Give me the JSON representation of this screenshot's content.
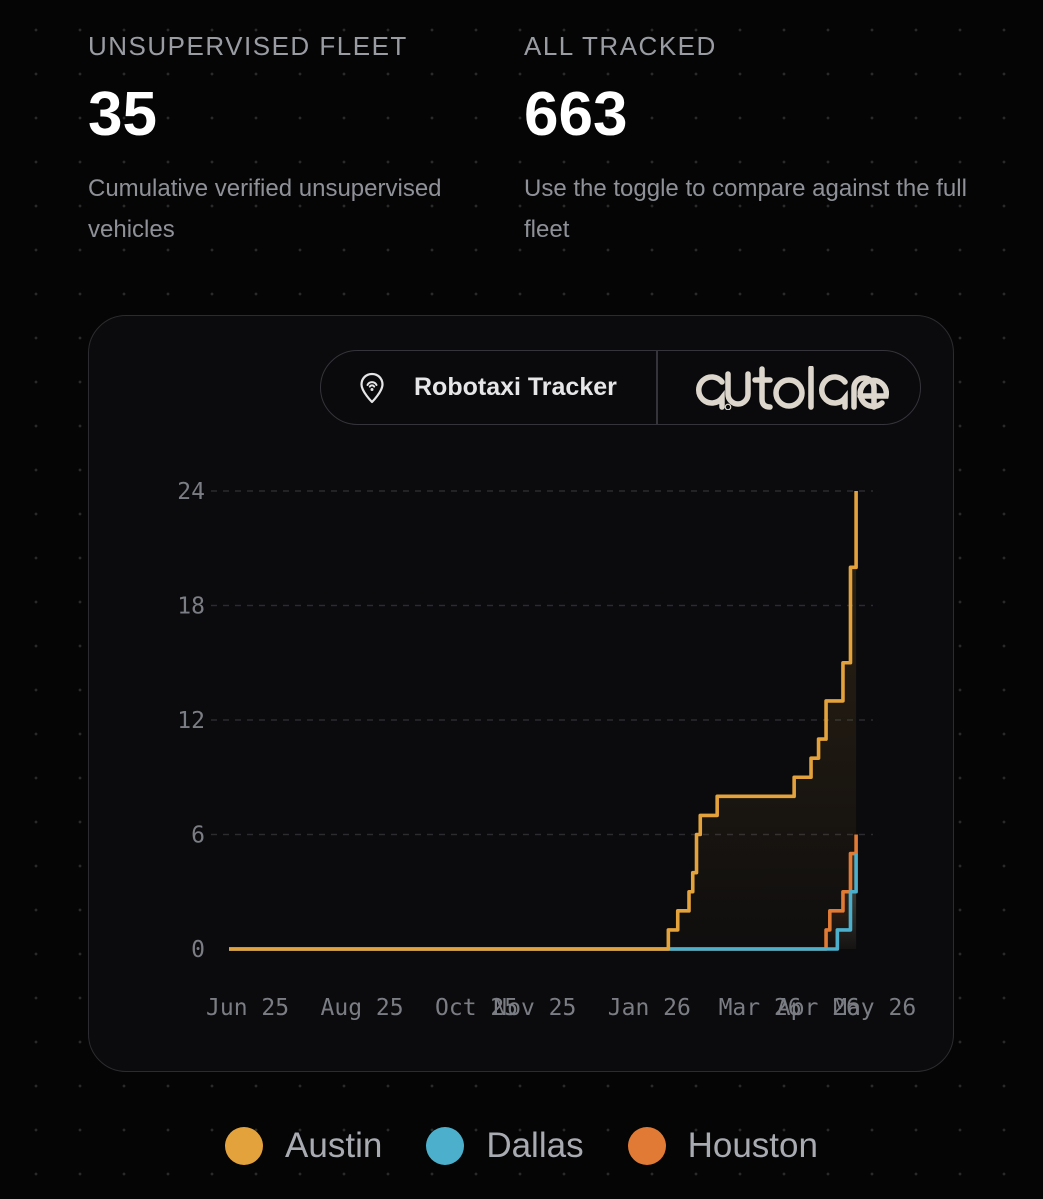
{
  "stats": {
    "left": {
      "label": "UNSUPERVISED FLEET",
      "value": "35",
      "description": "Cumulative verified unsupervised vehicles"
    },
    "right": {
      "label": "ALL TRACKED",
      "value": "663",
      "description": "Use the toggle to compare against the full fleet"
    }
  },
  "brand": {
    "tracker_label": "Robotaxi Tracker",
    "pin_icon": "location-pin-icon",
    "logo_text": "autolane"
  },
  "chart_data": {
    "type": "line",
    "x_type": "date",
    "x_tick_labels": [
      "Jun 25",
      "Aug 25",
      "Oct 25",
      "Nov 25",
      "Jan 26",
      "Mar 26",
      "Apr 26",
      "May 26"
    ],
    "x_ticks": [
      "2025-06-01",
      "2025-08-01",
      "2025-10-01",
      "2025-11-01",
      "2026-01-01",
      "2026-03-01",
      "2026-04-01",
      "2026-05-01"
    ],
    "x_range": [
      "2025-06-01",
      "2026-05-10"
    ],
    "y_ticks": [
      0,
      6,
      12,
      18,
      24
    ],
    "ylim": [
      0,
      24
    ],
    "grid": "horizontal-dashed",
    "step": true,
    "area_fill": true,
    "legend_position": "bottom",
    "series": [
      {
        "name": "Austin",
        "color": "#e3a23c",
        "points": [
          [
            "2025-06-01",
            0
          ],
          [
            "2026-01-21",
            1
          ],
          [
            "2026-01-26",
            2
          ],
          [
            "2026-02-01",
            3
          ],
          [
            "2026-02-03",
            4
          ],
          [
            "2026-02-05",
            6
          ],
          [
            "2026-02-07",
            7
          ],
          [
            "2026-02-16",
            8
          ],
          [
            "2026-03-29",
            9
          ],
          [
            "2026-04-07",
            10
          ],
          [
            "2026-04-11",
            11
          ],
          [
            "2026-04-15",
            13
          ],
          [
            "2026-04-24",
            15
          ],
          [
            "2026-04-28",
            20
          ],
          [
            "2026-05-01",
            24
          ]
        ]
      },
      {
        "name": "Dallas",
        "color": "#4cb0cc",
        "points": [
          [
            "2025-06-01",
            0
          ],
          [
            "2026-04-21",
            1
          ],
          [
            "2026-04-28",
            3
          ],
          [
            "2026-05-01",
            5
          ]
        ]
      },
      {
        "name": "Houston",
        "color": "#e07a35",
        "points": [
          [
            "2025-06-01",
            0
          ],
          [
            "2026-04-15",
            1
          ],
          [
            "2026-04-17",
            2
          ],
          [
            "2026-04-24",
            3
          ],
          [
            "2026-04-28",
            5
          ],
          [
            "2026-05-01",
            6
          ]
        ]
      }
    ]
  },
  "legend": [
    {
      "label": "Austin",
      "color": "#e3a23c"
    },
    {
      "label": "Dallas",
      "color": "#4cb0cc"
    },
    {
      "label": "Houston",
      "color": "#e07a35"
    }
  ]
}
